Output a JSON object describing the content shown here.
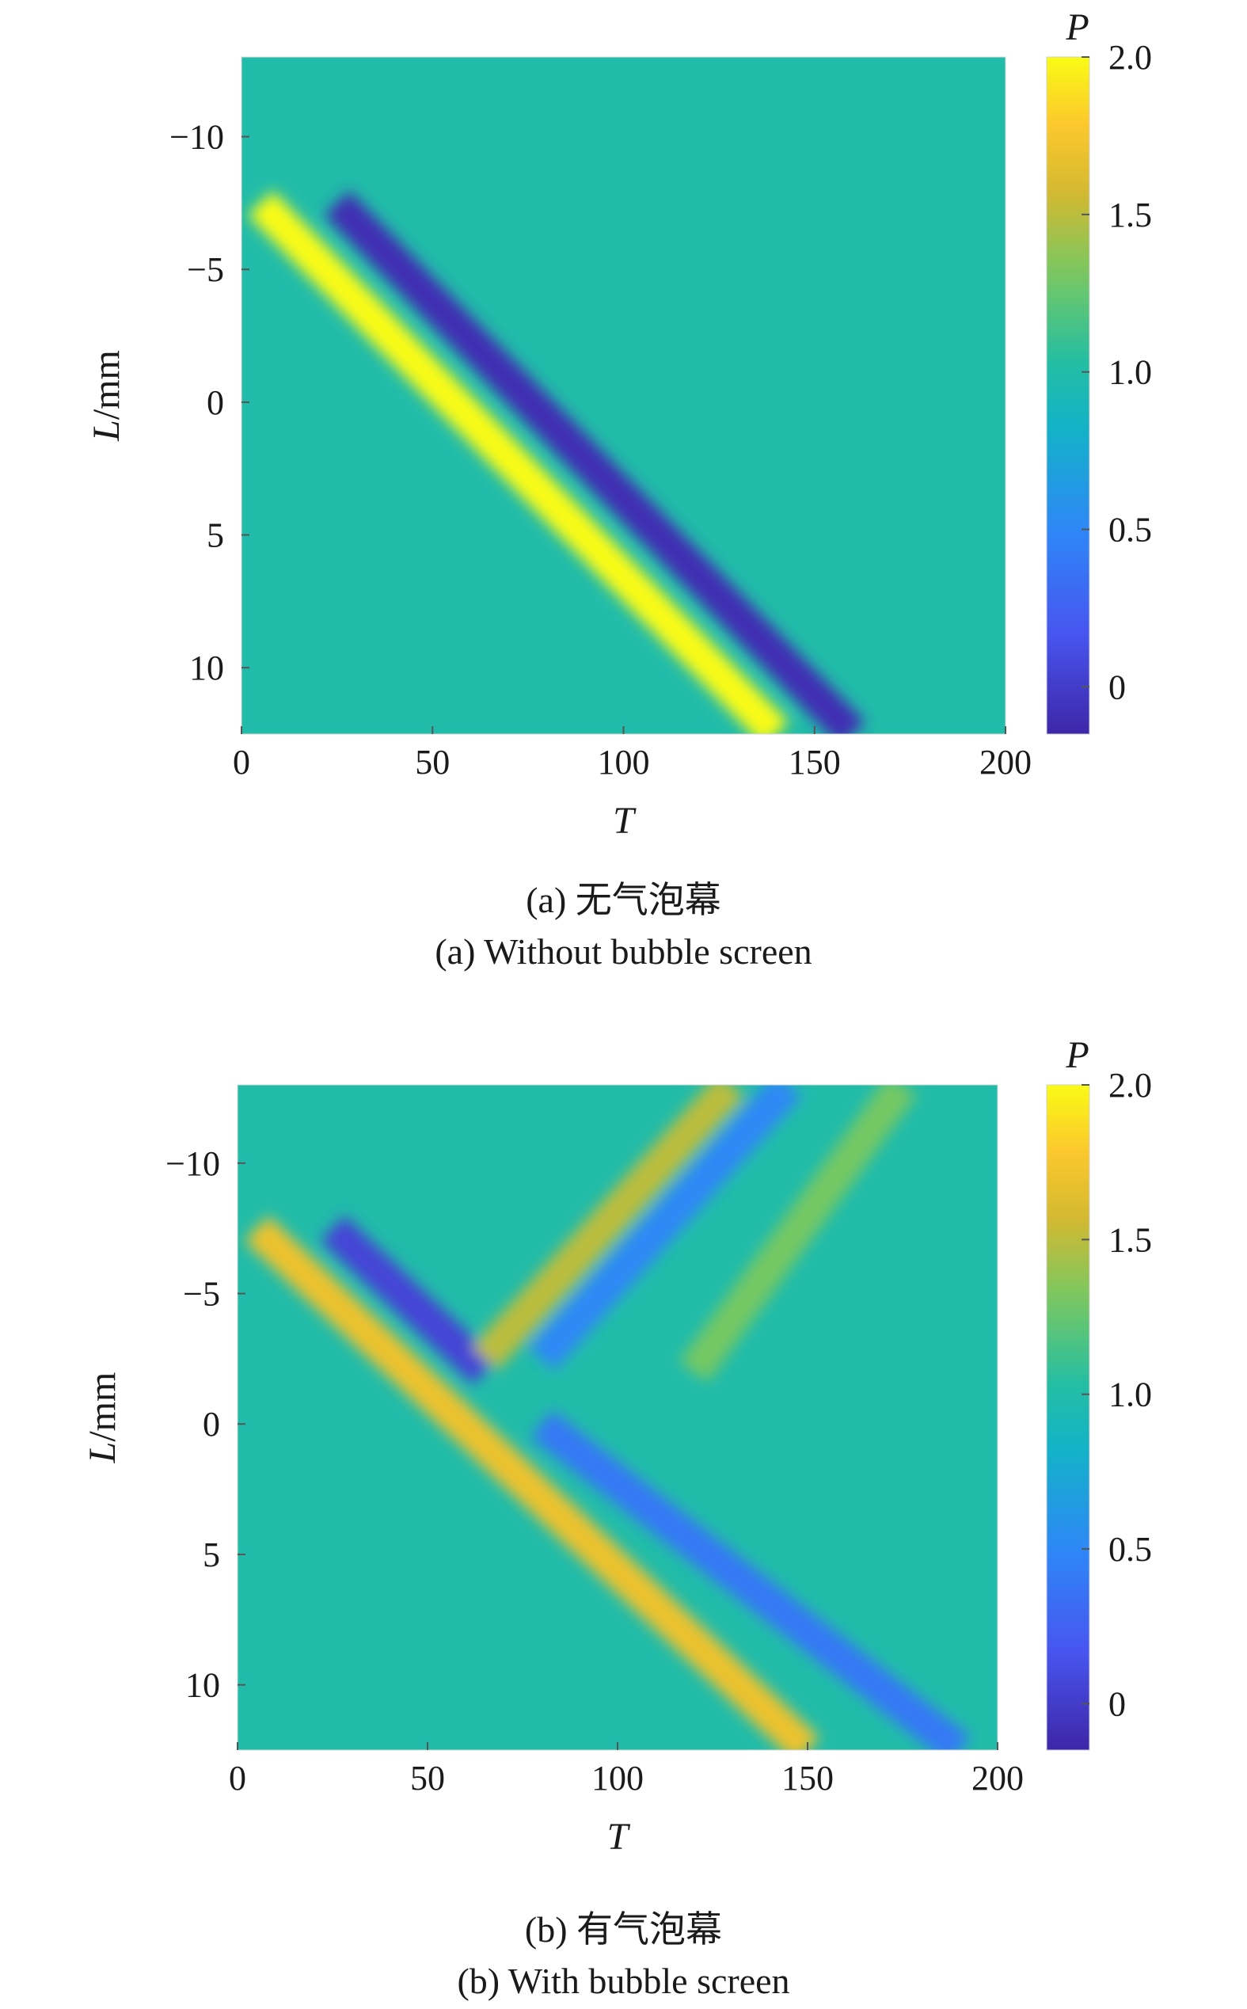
{
  "chart_data": [
    {
      "type": "heatmap",
      "title": "",
      "xlabel": "T",
      "ylabel": "L/mm",
      "xlim": [
        0,
        200
      ],
      "ylim": [
        -13,
        12.5
      ],
      "x_ticks": [
        "0",
        "50",
        "100",
        "150",
        "200"
      ],
      "y_ticks": [
        "−10",
        "−5",
        "0",
        "5",
        "10"
      ],
      "colorbar": {
        "label": "P",
        "range": [
          -0.15,
          2.0
        ],
        "ticks": [
          "2.0",
          "1.5",
          "1.0",
          "0.5",
          "0"
        ]
      },
      "background_value": 1.0,
      "features": [
        {
          "kind": "positive-pulse",
          "value": 2.0,
          "start": [
            5,
            -7.5
          ],
          "end": [
            140,
            12.5
          ]
        },
        {
          "kind": "negative-pulse",
          "value": -0.1,
          "start": [
            25,
            -7.5
          ],
          "end": [
            160,
            12.5
          ]
        }
      ],
      "caption_zh": "(a) 无气泡幕",
      "caption_en": "(a) Without bubble screen"
    },
    {
      "type": "heatmap",
      "title": "",
      "xlabel": "T",
      "ylabel": "L/mm",
      "xlim": [
        0,
        200
      ],
      "ylim": [
        -13,
        12.5
      ],
      "x_ticks": [
        "0",
        "50",
        "100",
        "150",
        "200"
      ],
      "y_ticks": [
        "−10",
        "−5",
        "0",
        "5",
        "10"
      ],
      "colorbar": {
        "label": "P",
        "range": [
          -0.15,
          2.0
        ],
        "ticks": [
          "2.0",
          "1.5",
          "1.0",
          "0.5",
          "0"
        ]
      },
      "background_value": 1.0,
      "features": [
        {
          "kind": "incident-positive",
          "value": 1.7,
          "start": [
            5,
            -7.5
          ],
          "end": [
            150,
            12.5
          ]
        },
        {
          "kind": "incident-negative",
          "value": 0.05,
          "start": [
            25,
            -7.5
          ],
          "end": [
            65,
            -2
          ]
        },
        {
          "kind": "reflected-positive",
          "value": 1.5,
          "start": [
            65,
            -2.5
          ],
          "end": [
            130,
            -13
          ]
        },
        {
          "kind": "reflected-negative",
          "value": 0.5,
          "start": [
            80,
            -2.5
          ],
          "end": [
            145,
            -13
          ]
        },
        {
          "kind": "transmitted-negative",
          "value": 0.4,
          "start": [
            80,
            0
          ],
          "end": [
            190,
            12.5
          ]
        },
        {
          "kind": "reflected-weak",
          "value": 1.3,
          "start": [
            120,
            -2
          ],
          "end": [
            175,
            -13
          ]
        }
      ],
      "caption_zh": "(b) 有气泡幕",
      "caption_en": "(b) With bubble screen"
    }
  ]
}
